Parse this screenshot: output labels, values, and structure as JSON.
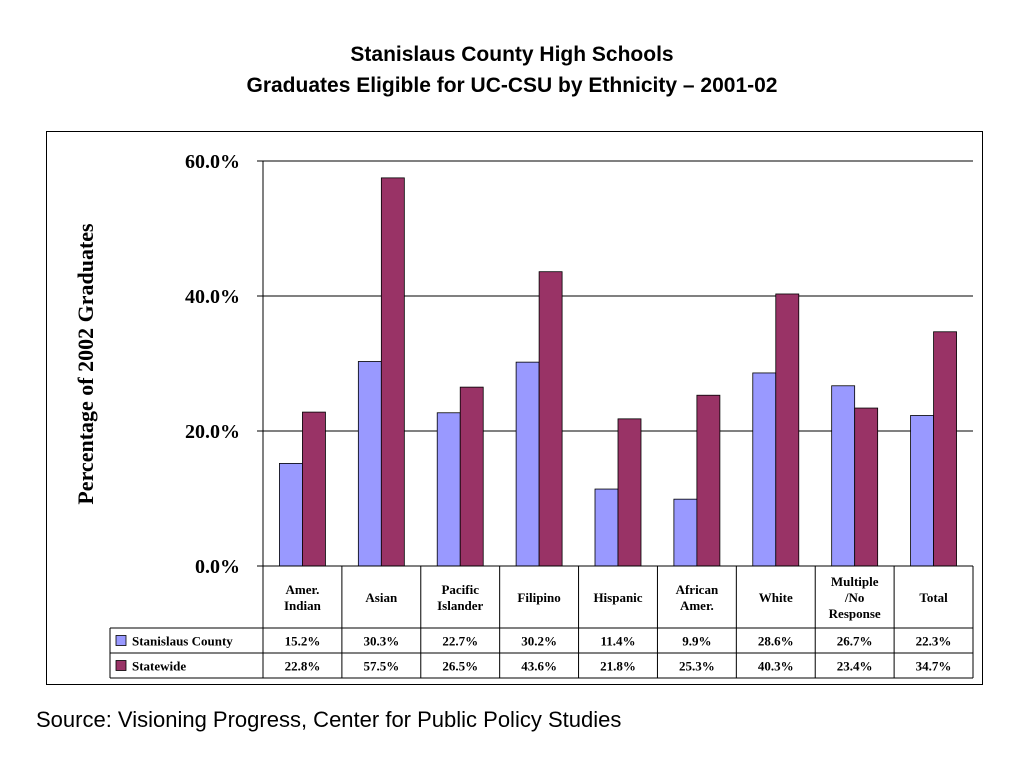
{
  "header": {
    "title_line1": "Stanislaus County High Schools",
    "title_line2": "Graduates Eligible for UC-CSU by Ethnicity – 2001-02"
  },
  "footer": {
    "source": "Source: Visioning Progress, Center for Public Policy Studies"
  },
  "chart_data": {
    "type": "bar",
    "title": "Stanislaus County High Schools Graduates Eligible for UC-CSU by Ethnicity – 2001-02",
    "xlabel": "",
    "ylabel": "Percentage of 2002 Graduates",
    "ylim": [
      0,
      60
    ],
    "yticks": [
      "0.0%",
      "20.0%",
      "40.0%",
      "60.0%"
    ],
    "grid": true,
    "legend_placement": "data-table",
    "categories": [
      [
        "Amer.",
        "Indian"
      ],
      [
        "Asian"
      ],
      [
        "Pacific",
        "Islander"
      ],
      [
        "Filipino"
      ],
      [
        "Hispanic"
      ],
      [
        "African",
        "Amer."
      ],
      [
        "White"
      ],
      [
        "Multiple",
        "/No",
        "Response"
      ],
      [
        "Total"
      ]
    ],
    "series": [
      {
        "name": "Stanislaus County",
        "color": "#9999FF",
        "values": [
          15.2,
          30.3,
          22.7,
          30.2,
          11.4,
          9.9,
          28.6,
          26.7,
          22.3
        ],
        "labels": [
          "15.2%",
          "30.3%",
          "22.7%",
          "30.2%",
          "11.4%",
          "9.9%",
          "28.6%",
          "26.7%",
          "22.3%"
        ]
      },
      {
        "name": "Statewide",
        "color": "#993366",
        "values": [
          22.8,
          57.5,
          26.5,
          43.6,
          21.8,
          25.3,
          40.3,
          23.4,
          34.7
        ],
        "labels": [
          "22.8%",
          "57.5%",
          "26.5%",
          "43.6%",
          "21.8%",
          "25.3%",
          "40.3%",
          "23.4%",
          "34.7%"
        ]
      }
    ]
  }
}
